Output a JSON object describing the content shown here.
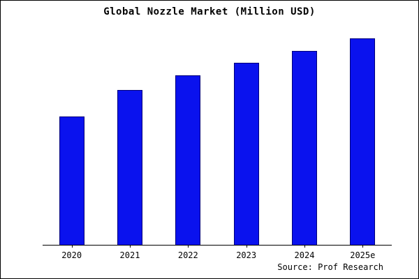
{
  "page": {
    "title": "Global Nozzle Market (Million USD)",
    "source": "Source: Prof Research"
  },
  "chart_data": {
    "type": "bar",
    "title": "Global Nozzle Market (Million USD)",
    "categories": [
      "2020",
      "2021",
      "2022",
      "2023",
      "2024",
      "2025e"
    ],
    "values": [
      62,
      75,
      82,
      88,
      94,
      100
    ],
    "xlabel": "",
    "ylabel": "",
    "ylim": [
      0,
      102
    ],
    "grid": false,
    "legend": "none",
    "y_axis_labels_visible": false,
    "units": "relative scale (no y-axis tick labels shown; max bar = 100)",
    "bar_color": "#0a12ee",
    "bar_edge_color": "#00007a",
    "axis_color": "#000000",
    "background_color": "#ffffff"
  }
}
